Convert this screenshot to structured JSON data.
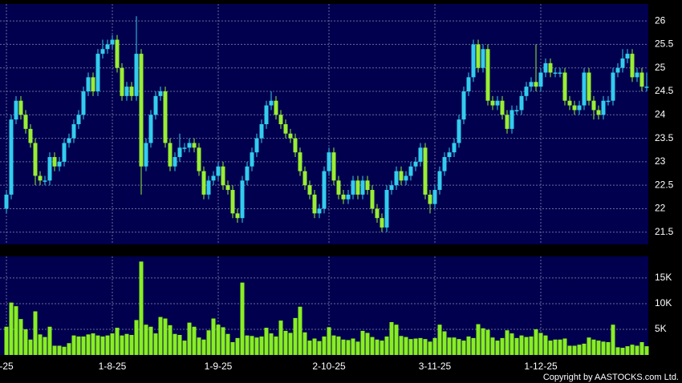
{
  "chart_data": {
    "type": "candlestick",
    "categories": [
      "-25",
      null,
      null,
      null,
      null,
      null,
      null,
      null,
      null,
      null,
      null,
      null,
      null,
      null,
      null,
      null,
      null,
      null,
      null,
      null,
      null,
      null,
      "1-8-25",
      null,
      null,
      null,
      null,
      null,
      null,
      null,
      null,
      null,
      null,
      null,
      null,
      null,
      null,
      null,
      null,
      null,
      null,
      null,
      null,
      null,
      "1-9-25",
      null,
      null,
      null,
      null,
      null,
      null,
      null,
      null,
      null,
      null,
      null,
      null,
      null,
      null,
      null,
      null,
      null,
      null,
      null,
      null,
      null,
      null,
      "2-10-25",
      null,
      null,
      null,
      null,
      null,
      null,
      null,
      null,
      null,
      null,
      null,
      null,
      null,
      null,
      null,
      null,
      null,
      null,
      null,
      null,
      null,
      "3-11-25",
      null,
      null,
      null,
      null,
      null,
      null,
      null,
      null,
      null,
      null,
      null,
      null,
      null,
      null,
      null,
      null,
      null,
      null,
      null,
      null,
      null,
      "1-12-25",
      null,
      null,
      null,
      null,
      null,
      null,
      null,
      null,
      null,
      null,
      null,
      null,
      null,
      null,
      null,
      null,
      null,
      null,
      null,
      null,
      null,
      null
    ],
    "open": [
      22.0,
      22.3,
      23.9,
      24.3,
      24.0,
      23.7,
      23.4,
      22.7,
      22.6,
      22.6,
      23.1,
      22.9,
      23.0,
      23.4,
      23.5,
      23.8,
      24.0,
      24.5,
      24.8,
      24.5,
      25.3,
      25.4,
      25.5,
      25.6,
      25.0,
      24.4,
      24.6,
      24.4,
      25.3,
      22.9,
      23.4,
      24.0,
      24.4,
      24.5,
      23.4,
      22.9,
      23.1,
      23.3,
      23.3,
      23.4,
      23.3,
      22.8,
      22.3,
      22.6,
      22.7,
      22.9,
      22.5,
      22.4,
      21.9,
      21.8,
      22.6,
      22.9,
      23.2,
      23.5,
      23.8,
      24.2,
      24.3,
      24.0,
      23.8,
      23.6,
      23.5,
      23.2,
      22.8,
      22.5,
      22.3,
      21.9,
      22.0,
      22.8,
      23.2,
      22.6,
      22.3,
      22.2,
      22.3,
      22.6,
      22.3,
      22.6,
      22.4,
      22.0,
      21.8,
      21.6,
      22.4,
      22.5,
      22.8,
      22.6,
      22.7,
      22.9,
      23.0,
      23.3,
      22.3,
      22.1,
      22.4,
      22.8,
      23.1,
      23.2,
      23.4,
      23.9,
      24.5,
      24.8,
      25.5,
      25.0,
      25.4,
      24.3,
      24.2,
      24.3,
      24.0,
      23.7,
      24.1,
      24.1,
      24.4,
      24.6,
      24.7,
      24.6,
      24.9,
      25.1,
      24.9,
      24.9,
      24.9,
      24.3,
      24.2,
      24.1,
      24.2,
      24.9,
      24.3,
      24.1,
      24.0,
      24.3,
      24.3,
      24.9,
      25.0,
      25.2,
      25.3,
      24.8,
      24.9,
      24.6
    ],
    "high": [
      22.4,
      24.0,
      24.4,
      24.4,
      24.1,
      23.8,
      23.5,
      22.8,
      22.7,
      23.2,
      23.2,
      23.1,
      23.5,
      23.6,
      23.9,
      24.1,
      24.6,
      24.9,
      24.9,
      25.4,
      25.6,
      25.6,
      25.7,
      25.7,
      25.1,
      24.7,
      24.7,
      26.1,
      25.4,
      23.5,
      24.1,
      24.5,
      24.6,
      24.6,
      23.5,
      23.2,
      23.6,
      23.4,
      23.5,
      23.5,
      23.4,
      22.9,
      22.7,
      22.8,
      23.0,
      23.0,
      22.6,
      22.5,
      22.0,
      22.7,
      23.0,
      23.3,
      23.6,
      23.9,
      24.3,
      24.5,
      24.4,
      24.1,
      23.9,
      23.7,
      23.6,
      23.3,
      22.9,
      22.6,
      22.4,
      22.1,
      22.9,
      23.3,
      23.3,
      22.7,
      22.4,
      22.4,
      22.7,
      22.7,
      22.7,
      22.7,
      22.5,
      22.1,
      21.9,
      22.5,
      22.6,
      22.9,
      22.9,
      22.8,
      23.0,
      23.1,
      23.4,
      23.4,
      22.4,
      22.5,
      22.9,
      23.2,
      23.3,
      23.5,
      24.0,
      24.6,
      24.9,
      25.6,
      25.6,
      25.5,
      25.5,
      24.4,
      24.4,
      24.4,
      24.1,
      24.2,
      24.2,
      24.5,
      24.7,
      24.8,
      25.5,
      25.0,
      25.2,
      25.2,
      25.0,
      25.0,
      25.0,
      24.4,
      24.3,
      24.3,
      25.0,
      25.0,
      24.4,
      24.2,
      24.4,
      24.4,
      25.0,
      25.1,
      25.4,
      25.4,
      25.4,
      25.0,
      25.0,
      24.9
    ],
    "low": [
      21.9,
      22.2,
      23.8,
      23.9,
      23.6,
      23.3,
      22.5,
      22.5,
      22.5,
      22.5,
      22.8,
      22.8,
      22.9,
      23.3,
      23.4,
      23.7,
      23.9,
      24.4,
      24.4,
      24.4,
      25.2,
      25.3,
      25.4,
      24.9,
      24.3,
      24.3,
      24.3,
      24.3,
      22.3,
      22.8,
      23.3,
      23.9,
      24.3,
      23.3,
      22.8,
      22.8,
      23.0,
      23.2,
      23.2,
      23.2,
      22.7,
      22.2,
      22.2,
      22.5,
      22.6,
      22.4,
      22.3,
      21.8,
      21.7,
      21.7,
      22.5,
      22.8,
      23.1,
      23.4,
      23.7,
      24.1,
      23.9,
      23.7,
      23.5,
      23.4,
      23.1,
      22.7,
      22.4,
      22.2,
      21.8,
      21.8,
      21.9,
      22.7,
      22.5,
      22.2,
      22.1,
      22.1,
      22.2,
      22.2,
      22.2,
      22.3,
      21.9,
      21.7,
      21.5,
      21.5,
      22.3,
      22.4,
      22.5,
      22.5,
      22.6,
      22.8,
      22.9,
      22.2,
      21.9,
      22.0,
      22.3,
      22.7,
      23.0,
      23.1,
      23.3,
      23.8,
      24.4,
      24.7,
      24.9,
      24.9,
      24.2,
      24.1,
      24.1,
      23.9,
      23.6,
      23.6,
      24.0,
      24.0,
      24.3,
      24.5,
      24.5,
      24.5,
      24.8,
      24.8,
      24.8,
      24.8,
      24.2,
      24.1,
      24.0,
      24.0,
      24.1,
      24.2,
      23.9,
      23.9,
      23.9,
      24.2,
      24.2,
      24.8,
      24.9,
      25.1,
      24.7,
      24.7,
      24.5,
      24.5
    ],
    "close": [
      22.3,
      23.9,
      24.3,
      24.0,
      23.7,
      23.4,
      22.7,
      22.6,
      22.6,
      23.1,
      22.9,
      23.0,
      23.4,
      23.5,
      23.8,
      24.0,
      24.5,
      24.8,
      24.5,
      25.3,
      25.4,
      25.5,
      25.6,
      25.0,
      24.4,
      24.6,
      24.4,
      25.3,
      22.9,
      23.4,
      24.0,
      24.4,
      24.5,
      23.4,
      22.9,
      23.1,
      23.3,
      23.3,
      23.4,
      23.3,
      22.8,
      22.3,
      22.6,
      22.7,
      22.9,
      22.5,
      22.4,
      21.9,
      21.8,
      22.6,
      22.9,
      23.2,
      23.5,
      23.8,
      24.2,
      24.3,
      24.0,
      23.8,
      23.6,
      23.5,
      23.2,
      22.8,
      22.5,
      22.3,
      21.9,
      22.0,
      22.8,
      23.2,
      22.6,
      22.3,
      22.2,
      22.3,
      22.6,
      22.3,
      22.6,
      22.4,
      22.0,
      21.8,
      21.6,
      22.4,
      22.5,
      22.8,
      22.6,
      22.7,
      22.9,
      23.0,
      23.3,
      22.3,
      22.1,
      22.4,
      22.8,
      23.1,
      23.2,
      23.4,
      23.9,
      24.5,
      24.8,
      25.5,
      25.0,
      25.4,
      24.3,
      24.2,
      24.3,
      24.0,
      23.7,
      24.1,
      24.1,
      24.4,
      24.6,
      24.7,
      24.6,
      24.9,
      25.1,
      24.9,
      24.9,
      24.9,
      24.3,
      24.2,
      24.1,
      24.2,
      24.9,
      24.3,
      24.1,
      24.0,
      24.3,
      24.3,
      24.9,
      25.0,
      25.2,
      25.3,
      24.8,
      24.9,
      24.6,
      24.6
    ],
    "up_color": "#33ccee",
    "down_color": "#99ee33",
    "ylim": [
      21.24,
      26.36
    ],
    "yticks": [
      21.5,
      22,
      22.5,
      23,
      23.5,
      24,
      24.5,
      25,
      25.5,
      26
    ],
    "grid": true,
    "volume": {
      "color": "#88ee22",
      "values": [
        5500,
        10200,
        9500,
        7000,
        5000,
        3000,
        8500,
        4000,
        3500,
        5500,
        1800,
        1800,
        1600,
        2300,
        3800,
        3600,
        3600,
        4000,
        4200,
        3800,
        3600,
        3800,
        4200,
        5300,
        3800,
        4100,
        3900,
        6800,
        18200,
        5900,
        5500,
        4200,
        7400,
        7100,
        5800,
        4100,
        3900,
        2800,
        6300,
        5500,
        3400,
        3000,
        4800,
        7100,
        5900,
        5400,
        4100,
        2500,
        3300,
        14100,
        3800,
        3700,
        3400,
        3600,
        5300,
        4200,
        3600,
        6700,
        4700,
        4300,
        7200,
        9400,
        4400,
        2800,
        3200,
        2700,
        3600,
        5400,
        3800,
        3600,
        3000,
        2900,
        3200,
        2600,
        4700,
        4300,
        3500,
        3000,
        2800,
        3600,
        6400,
        5900,
        3700,
        3500,
        3100,
        3200,
        3300,
        3100,
        2600,
        3300,
        5900,
        4600,
        3400,
        3400,
        3100,
        2800,
        3600,
        3300,
        6000,
        5200,
        4900,
        3400,
        2800,
        3300,
        4800,
        4200,
        3300,
        3800,
        3500,
        3600,
        5000,
        4300,
        3800,
        2800,
        3000,
        3000,
        3200,
        1800,
        1800,
        2000,
        2200,
        3400,
        3000,
        2800,
        2600,
        2500,
        5900,
        1500,
        1400,
        1700,
        2000,
        1800,
        2500,
        1700
      ],
      "ylim": [
        0,
        19200
      ],
      "yticks": [
        {
          "value": 5000,
          "label": "5K"
        },
        {
          "value": 10000,
          "label": "10K"
        },
        {
          "value": 15000,
          "label": "15K"
        }
      ]
    },
    "footer": "Copyright by AASTOCKS.com Ltd."
  }
}
